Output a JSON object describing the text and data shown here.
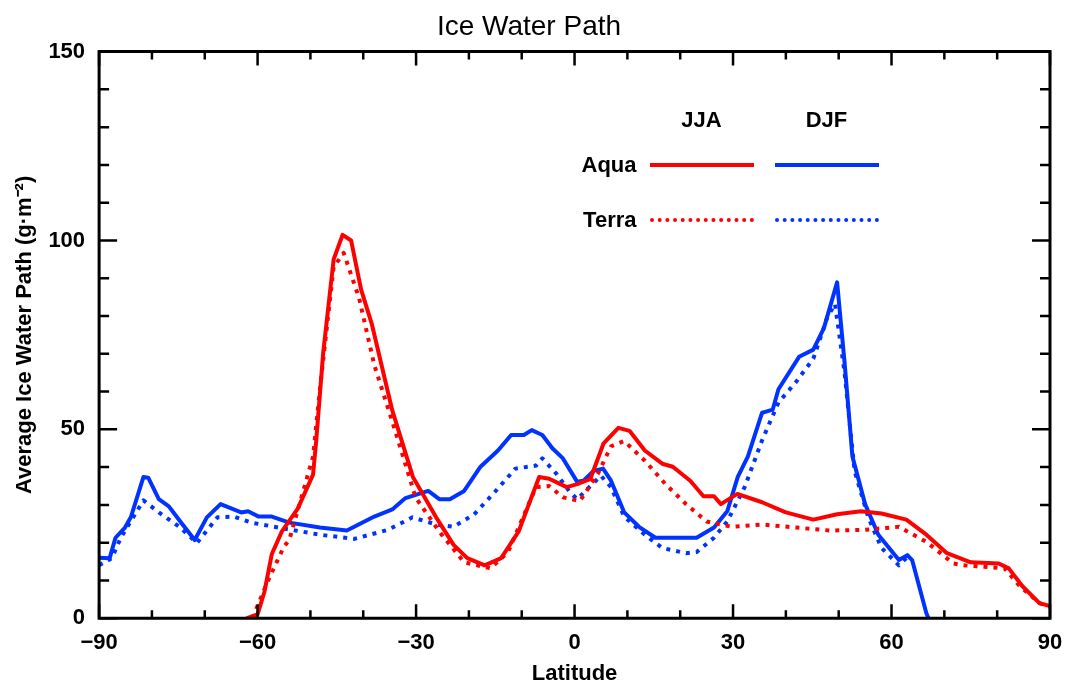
{
  "chart_data": {
    "type": "line",
    "title": "Ice Water Path",
    "xlabel": "Latitude",
    "ylabel": "Average Ice Water Path (g·m⁻²)",
    "xlim": [
      -90,
      90
    ],
    "ylim": [
      0,
      150
    ],
    "xticks": [
      -90,
      {
        "value": -80,
        "label": null
      },
      {
        "value": -70,
        "label": null
      },
      -60,
      {
        "value": -50,
        "label": null
      },
      {
        "value": -40,
        "label": null
      },
      -30,
      {
        "value": -20,
        "label": null
      },
      {
        "value": -10,
        "label": null
      },
      0,
      {
        "value": 10,
        "label": null
      },
      {
        "value": 20,
        "label": null
      },
      30,
      {
        "value": 40,
        "label": null
      },
      {
        "value": 50,
        "label": null
      },
      60,
      {
        "value": 70,
        "label": null
      },
      {
        "value": 80,
        "label": null
      },
      90
    ],
    "yticks": [
      0,
      {
        "value": 10,
        "label": null
      },
      {
        "value": 20,
        "label": null
      },
      {
        "value": 30,
        "label": null
      },
      {
        "value": 40,
        "label": null
      },
      50,
      {
        "value": 60,
        "label": null
      },
      {
        "value": 70,
        "label": null
      },
      {
        "value": 80,
        "label": null
      },
      {
        "value": 90,
        "label": null
      },
      100,
      {
        "value": 110,
        "label": null
      },
      {
        "value": 120,
        "label": null
      },
      {
        "value": 130,
        "label": null
      },
      {
        "value": 140,
        "label": null
      },
      150
    ],
    "grid": false,
    "marker": "none",
    "annotations": [
      "JJA",
      "DJF",
      "Aqua",
      "Terra"
    ],
    "series": [
      {
        "color": "#ff0000",
        "line_style": "solid",
        "x": [
          -62,
          -60,
          -58.7,
          -57.3,
          -55.4,
          -52.4,
          -49.5,
          -48.9,
          -47.6,
          -45.6,
          -43.9,
          -42.3,
          -40.4,
          -38.4,
          -34.5,
          -30.6,
          -26.2,
          -22.9,
          -20.3,
          -17,
          -13.9,
          -10.6,
          -6.7,
          -4.8,
          -1.5,
          0.5,
          3,
          5.5,
          8.3,
          10.4,
          13.3,
          16.6,
          18.6,
          21.9,
          24.4,
          26.4,
          27.7,
          30.8,
          35.5,
          40,
          45.2,
          49.7,
          54.2,
          58.1,
          62.8,
          66.6,
          70.5,
          75,
          80.3,
          82.2,
          84.7,
          88,
          90
        ],
        "values": [
          0,
          1,
          7,
          17,
          23,
          29,
          38,
          47,
          70,
          95,
          101.5,
          100,
          87,
          78,
          55,
          37.4,
          26.7,
          19.4,
          15.9,
          14,
          15.9,
          22.9,
          37.4,
          36.9,
          34.7,
          35.5,
          36.9,
          46.3,
          50.4,
          49.6,
          44.4,
          40.9,
          40.1,
          36.4,
          32.3,
          32.3,
          30.2,
          32.9,
          30.7,
          28,
          26.1,
          27.5,
          28.3,
          27.7,
          26.1,
          22.1,
          17.2,
          14.8,
          14.5,
          13.2,
          8.6,
          4,
          3.2
        ]
      },
      {
        "color": "#ff0000",
        "line_style": "dotted",
        "x": [
          -61,
          -58,
          -55,
          -54,
          -49.5,
          -48.2,
          -45.6,
          -43.7,
          -40.8,
          -37.9,
          -34,
          -30.1,
          -25.6,
          -20.9,
          -15.9,
          -12.6,
          -7.3,
          -4.8,
          -2.2,
          1,
          4.4,
          6.9,
          9.4,
          13.3,
          17.2,
          21.1,
          25,
          29.7,
          35.5,
          41.9,
          48.4,
          54.9,
          61.4,
          66.6,
          71.7,
          73.6,
          81.4,
          84.2,
          88,
          90
        ],
        "values": [
          0,
          10,
          19,
          20.7,
          42.8,
          60.6,
          93,
          96.7,
          84.8,
          67,
          49.8,
          32,
          22.9,
          14.8,
          13.2,
          17.5,
          34.7,
          35,
          32,
          31,
          38.2,
          45.5,
          46.9,
          41.7,
          35.5,
          30.2,
          25.6,
          24.2,
          24.8,
          24,
          23.2,
          23.4,
          24.2,
          20.2,
          14.5,
          14,
          13.2,
          8.6,
          4,
          3
        ]
      },
      {
        "color": "#0033ff",
        "line_style": "solid",
        "x": [
          -90,
          -88,
          -86.9,
          -85.1,
          -84,
          -81.6,
          -80.7,
          -78.7,
          -76.8,
          -74.2,
          -71.9,
          -69.6,
          -67,
          -63.1,
          -61.8,
          -59.8,
          -57.3,
          -54,
          -48.2,
          -43.1,
          -37.9,
          -34.5,
          -32,
          -27.7,
          -25.6,
          -23.6,
          -20.9,
          -17.8,
          -14.5,
          -12,
          -9.6,
          -8.1,
          -6.1,
          -4.2,
          -2.2,
          0.5,
          1.7,
          3.6,
          5.4,
          6.9,
          9.4,
          12.2,
          15.3,
          19.9,
          23.1,
          26.4,
          28.9,
          30.9,
          32.8,
          35.5,
          37.5,
          38.6,
          42.5,
          45.2,
          47.2,
          49.7,
          51.1,
          52.6,
          55,
          57.5,
          61.4,
          63,
          63.9,
          66.6,
          67
        ],
        "values": [
          16,
          15.9,
          21.3,
          24,
          26.7,
          37.4,
          37.2,
          31.5,
          29.6,
          24.8,
          20.7,
          26.7,
          30.2,
          28,
          28.3,
          26.9,
          26.9,
          25.3,
          24,
          23.2,
          26.9,
          28.8,
          31.8,
          33.7,
          31.5,
          31.5,
          33.7,
          40.1,
          44.4,
          48.5,
          48.5,
          49.8,
          48.5,
          45,
          42.3,
          36.1,
          36.4,
          39,
          39.6,
          36.4,
          28,
          24.2,
          21.3,
          21.3,
          21.3,
          24,
          28.3,
          37.4,
          42.8,
          54.4,
          55.2,
          60.6,
          69.2,
          71.1,
          76.8,
          88.9,
          67.9,
          42.8,
          30.2,
          22.1,
          15.4,
          16.7,
          15.4,
          1.3,
          0
        ]
      },
      {
        "color": "#0033ff",
        "line_style": "dotted",
        "x": [
          -90,
          -87.6,
          -85.9,
          -81.6,
          -78.7,
          -74.8,
          -71.5,
          -67.6,
          -64.5,
          -61.2,
          -54.8,
          -48.2,
          -41.7,
          -35.3,
          -30.7,
          -26.2,
          -22.9,
          -19,
          -15.1,
          -11.2,
          -7.3,
          -6.1,
          -3.4,
          -0.9,
          0.5,
          3,
          5,
          6.9,
          9.4,
          13.3,
          16.6,
          21.1,
          23.1,
          26.4,
          28.9,
          32.2,
          35.5,
          38.6,
          41.9,
          45.2,
          47.8,
          49.3,
          51.1,
          53,
          55.6,
          58.1,
          61.4,
          62.8
        ],
        "values": [
          14,
          15.9,
          21.3,
          31.2,
          28,
          24.2,
          19.9,
          26.7,
          26.9,
          25.3,
          23.7,
          22.1,
          21,
          23.4,
          26.7,
          24.8,
          24.2,
          27.5,
          33.4,
          39.6,
          40.4,
          42.3,
          38.2,
          33.4,
          31.5,
          35,
          37.7,
          34.7,
          26.9,
          22.1,
          18.6,
          17.2,
          17.5,
          21.3,
          25.6,
          34.7,
          47.1,
          57.1,
          62.5,
          68.7,
          79.5,
          83.2,
          65.2,
          39,
          26.7,
          18.6,
          14,
          15.9
        ]
      }
    ]
  }
}
